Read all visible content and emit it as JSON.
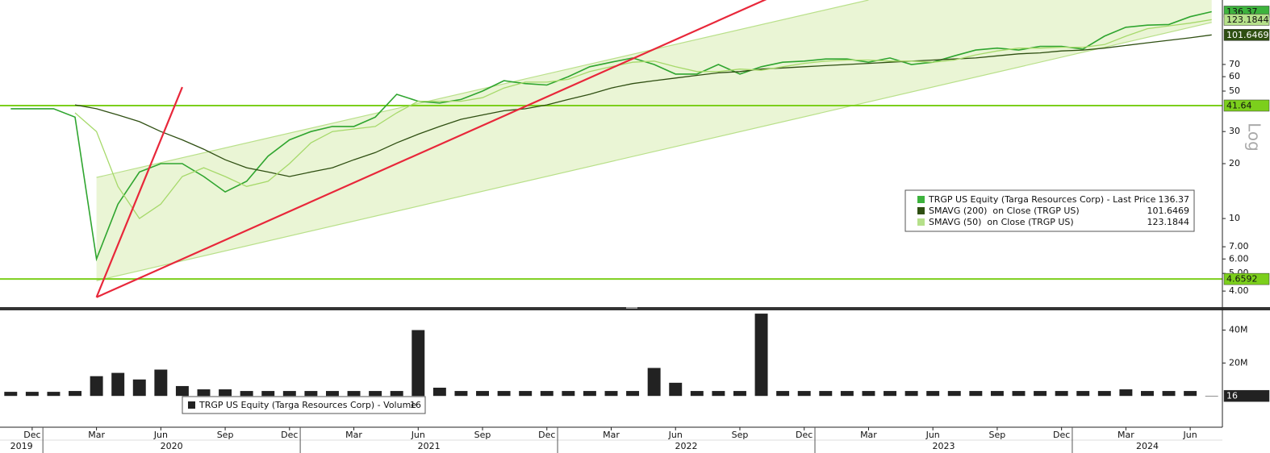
{
  "chart_data": [
    {
      "type": "line",
      "log_scale": true,
      "x": [
        "2019-11",
        "2019-12",
        "2020-01",
        "2020-02",
        "2020-03",
        "2020-04",
        "2020-05",
        "2020-06",
        "2020-07",
        "2020-08",
        "2020-09",
        "2020-10",
        "2020-11",
        "2020-12",
        "2021-01",
        "2021-02",
        "2021-03",
        "2021-04",
        "2021-05",
        "2021-06",
        "2021-07",
        "2021-08",
        "2021-09",
        "2021-10",
        "2021-11",
        "2021-12",
        "2022-01",
        "2022-02",
        "2022-03",
        "2022-04",
        "2022-05",
        "2022-06",
        "2022-07",
        "2022-08",
        "2022-09",
        "2022-10",
        "2022-11",
        "2022-12",
        "2023-01",
        "2023-02",
        "2023-03",
        "2023-04",
        "2023-05",
        "2023-06",
        "2023-07",
        "2023-08",
        "2023-09",
        "2023-10",
        "2023-11",
        "2023-12",
        "2024-01",
        "2024-02",
        "2024-03",
        "2024-04",
        "2024-05",
        "2024-06",
        "2024-07"
      ],
      "series": [
        {
          "name": "TRGP US Equity (Targa Resources Corp) - Last Price",
          "color": "#2fa52f",
          "box_color": "#3db33d",
          "values": [
            40,
            40,
            40,
            36,
            6,
            12,
            18,
            20,
            20,
            17,
            14,
            16,
            22,
            27,
            30,
            32,
            32,
            36,
            48,
            44,
            43,
            45,
            50,
            57,
            55,
            54,
            60,
            68,
            72,
            76,
            70,
            62,
            62,
            70,
            62,
            68,
            72,
            73,
            75,
            75,
            72,
            76,
            70,
            72,
            78,
            84,
            86,
            84,
            88,
            88,
            85,
            100,
            112,
            115,
            116,
            128,
            136.37
          ]
        },
        {
          "name": "SMAVG (200)  on Close (TRGP US)",
          "color": "#2f4f12",
          "box_color": "#2f4f12",
          "values": [
            null,
            null,
            null,
            42,
            40,
            37,
            34,
            30,
            27,
            24,
            21,
            19,
            18,
            17,
            18,
            19,
            21,
            23,
            26,
            29,
            32,
            35,
            37,
            39,
            40,
            42,
            45,
            48,
            52,
            55,
            57,
            59,
            61,
            63,
            64,
            66,
            67,
            68,
            69,
            70,
            71,
            72,
            73,
            74,
            75,
            76,
            78,
            80,
            81,
            83,
            84,
            86,
            89,
            92,
            95,
            98,
            101.6469
          ]
        },
        {
          "name": "SMAVG (50)  on Close (TRGP US)",
          "color": "#a6d96a",
          "box_color": "#b5e08a",
          "values": [
            null,
            null,
            null,
            38,
            30,
            15,
            10,
            12,
            17,
            19,
            17,
            15,
            16,
            20,
            26,
            30,
            31,
            32,
            38,
            44,
            44,
            44,
            46,
            52,
            56,
            56,
            58,
            64,
            68,
            72,
            73,
            68,
            64,
            64,
            66,
            65,
            68,
            71,
            73,
            74,
            74,
            73,
            73,
            72,
            74,
            79,
            83,
            86,
            86,
            87,
            87,
            90,
            100,
            110,
            114,
            118,
            123.1844
          ]
        }
      ],
      "xlim": [
        "2019-11",
        "2024-07"
      ],
      "ylim": [
        3.3,
        158
      ],
      "yticks": [
        {
          "value": 4,
          "label": "4.00"
        },
        {
          "value": 5,
          "label": "5.00"
        },
        {
          "value": 6,
          "label": "6.00"
        },
        {
          "value": 7,
          "label": "7.00"
        },
        10,
        20,
        30,
        50,
        60,
        70
      ],
      "scale_label": "Log",
      "hlines": [
        {
          "value": 41.64,
          "color": "#7ccf1c"
        },
        {
          "value": 4.6592,
          "color": "#7ccf1c"
        }
      ],
      "trendlines": [
        {
          "x": [
            "2020-03",
            "2020-07"
          ],
          "y": [
            3.7,
            52.6
          ],
          "color": "#e8273a"
        },
        {
          "x": [
            "2020-03",
            "2022-11"
          ],
          "y": [
            3.7,
            175
          ],
          "color": "#e8273a"
        }
      ],
      "channel": {
        "upper": {
          "x": [
            "2020-03",
            "2023-03"
          ],
          "y": [
            16.8,
            158
          ]
        },
        "lower": {
          "x": [
            "2020-03",
            "2024-07"
          ],
          "y": [
            4.56,
            119
          ]
        },
        "color": "#eaf5d5",
        "edge_color": "#b9e08a"
      }
    },
    {
      "type": "bar",
      "x": [
        "2019-11",
        "2019-12",
        "2020-01",
        "2020-02",
        "2020-03",
        "2020-04",
        "2020-05",
        "2020-06",
        "2020-07",
        "2020-08",
        "2020-09",
        "2020-10",
        "2020-11",
        "2020-12",
        "2021-01",
        "2021-02",
        "2021-03",
        "2021-04",
        "2021-05",
        "2021-06",
        "2021-07",
        "2021-08",
        "2021-09",
        "2021-10",
        "2021-11",
        "2021-12",
        "2022-01",
        "2022-02",
        "2022-03",
        "2022-04",
        "2022-05",
        "2022-06",
        "2022-07",
        "2022-08",
        "2022-09",
        "2022-10",
        "2022-11",
        "2022-12",
        "2023-01",
        "2023-02",
        "2023-03",
        "2023-04",
        "2023-05",
        "2023-06",
        "2023-07",
        "2023-08",
        "2023-09",
        "2023-10",
        "2023-11",
        "2023-12",
        "2024-01",
        "2024-02",
        "2024-03",
        "2024-04",
        "2024-05",
        "2024-06",
        "2024-07"
      ],
      "series": [
        {
          "name": "TRGP US Equity (Targa Resources Corp) - Volume",
          "color": "#222222",
          "values": [
            2500000,
            2500000,
            2500000,
            3000000,
            12000000,
            14000000,
            10000000,
            16000000,
            6000000,
            4000000,
            4000000,
            3000000,
            3000000,
            3000000,
            3000000,
            3000000,
            3000000,
            3000000,
            3000000,
            40000000,
            5000000,
            3000000,
            3000000,
            3000000,
            3000000,
            3000000,
            3000000,
            3000000,
            3000000,
            3000000,
            17000000,
            8000000,
            3000000,
            3000000,
            3000000,
            50000000,
            3000000,
            3000000,
            3000000,
            3000000,
            3000000,
            3000000,
            3000000,
            3000000,
            3000000,
            3000000,
            3000000,
            3000000,
            3000000,
            3000000,
            3000000,
            3000000,
            4000000,
            3000000,
            3000000,
            3000000,
            16
          ]
        }
      ],
      "xlim": [
        "2019-11",
        "2024-07"
      ],
      "ylim": [
        -19000000,
        52000000
      ],
      "yticks": [
        {
          "value": 20000000,
          "label": "20M"
        },
        {
          "value": 40000000,
          "label": "40M"
        }
      ],
      "xticks": [
        {
          "value": "2019-12",
          "label": "Dec"
        },
        {
          "value": "2020-03",
          "label": "Mar"
        },
        {
          "value": "2020-06",
          "label": "Jun"
        },
        {
          "value": "2020-09",
          "label": "Sep"
        },
        {
          "value": "2020-12",
          "label": "Dec"
        },
        {
          "value": "2021-03",
          "label": "Mar"
        },
        {
          "value": "2021-06",
          "label": "Jun"
        },
        {
          "value": "2021-09",
          "label": "Sep"
        },
        {
          "value": "2021-12",
          "label": "Dec"
        },
        {
          "value": "2022-03",
          "label": "Mar"
        },
        {
          "value": "2022-06",
          "label": "Jun"
        },
        {
          "value": "2022-09",
          "label": "Sep"
        },
        {
          "value": "2022-12",
          "label": "Dec"
        },
        {
          "value": "2023-03",
          "label": "Mar"
        },
        {
          "value": "2023-06",
          "label": "Jun"
        },
        {
          "value": "2023-09",
          "label": "Sep"
        },
        {
          "value": "2023-12",
          "label": "Dec"
        },
        {
          "value": "2024-03",
          "label": "Mar"
        },
        {
          "value": "2024-06",
          "label": "Jun"
        }
      ],
      "year_ticks": [
        2019,
        2020,
        2021,
        2022,
        2023,
        2024
      ]
    }
  ]
}
